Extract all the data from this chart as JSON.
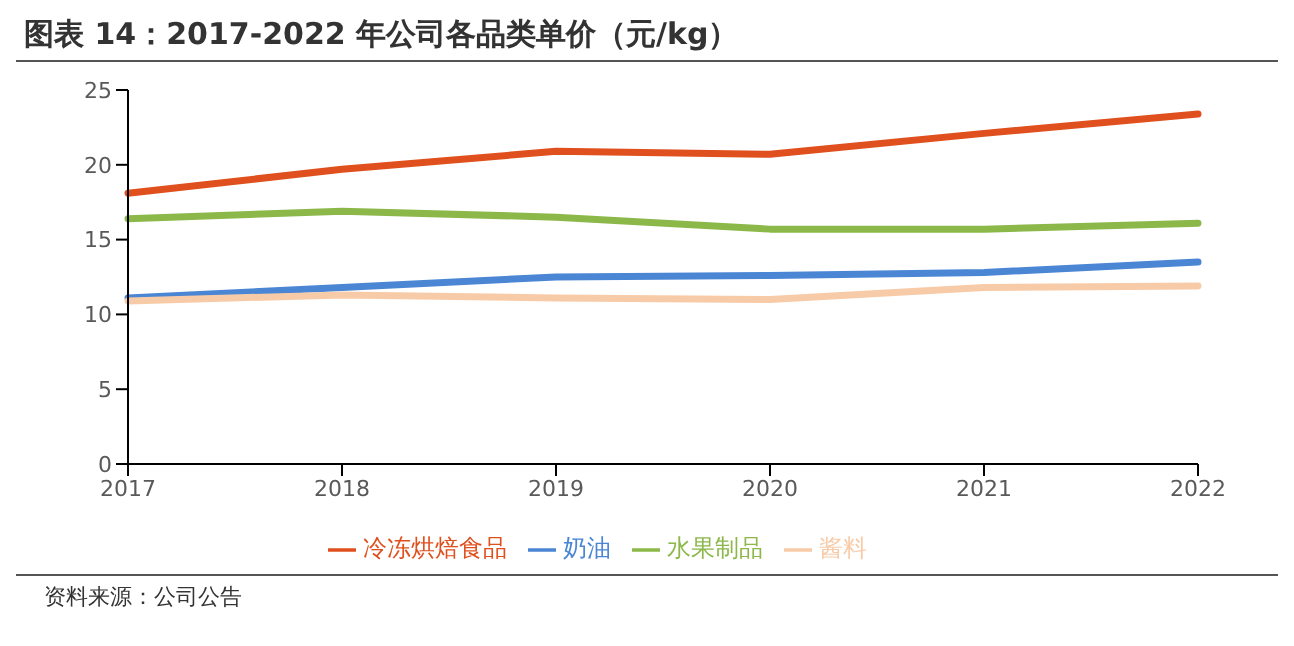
{
  "chart_data": {
    "type": "line",
    "title": "图表 14：2017-2022 年公司各品类单价（元/kg）",
    "categories": [
      "2017",
      "2018",
      "2019",
      "2020",
      "2021",
      "2022"
    ],
    "series": [
      {
        "name": "冷冻烘焙食品",
        "color": "#e0501e",
        "values": [
          18.1,
          19.7,
          20.9,
          20.7,
          22.1,
          23.4
        ]
      },
      {
        "name": "奶油",
        "color": "#4a86d4",
        "values": [
          11.1,
          11.8,
          12.5,
          12.6,
          12.8,
          13.5
        ]
      },
      {
        "name": "水果制品",
        "color": "#8cb84a",
        "values": [
          16.4,
          16.9,
          16.5,
          15.7,
          15.7,
          16.1
        ]
      },
      {
        "name": "酱料",
        "color": "#f8cba8",
        "values": [
          10.9,
          11.3,
          11.1,
          11.0,
          11.8,
          11.9
        ]
      }
    ],
    "ylim": [
      0,
      25
    ],
    "yticks": [
      0,
      5,
      10,
      15,
      20,
      25
    ],
    "grid": false,
    "legend": "bottom",
    "marker": "none",
    "line_style": "solid",
    "annotations": [
      "资料来源：公司公告"
    ]
  }
}
